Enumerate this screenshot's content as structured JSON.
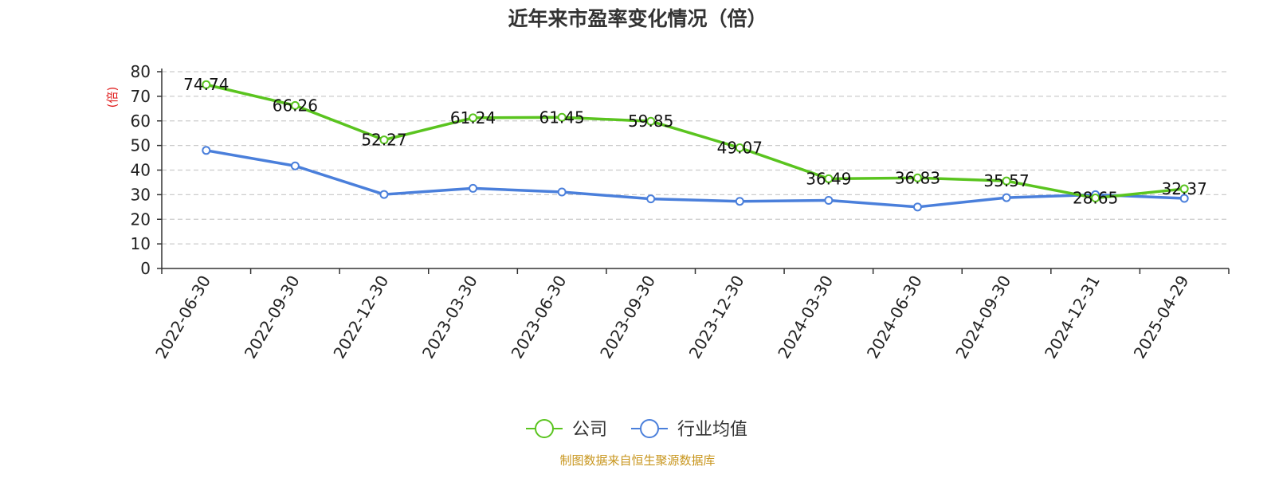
{
  "chart_data": {
    "type": "line",
    "title": "近年来市盈率变化情况（倍）",
    "ylabel": "(倍)",
    "ylim": [
      0,
      80
    ],
    "yticks": [
      0,
      10,
      20,
      30,
      40,
      50,
      60,
      70,
      80
    ],
    "grid": "horizontal-dashed",
    "legend_position": "bottom-center",
    "categories": [
      "2022-06-30",
      "2022-09-30",
      "2022-12-30",
      "2023-03-30",
      "2023-06-30",
      "2023-09-30",
      "2023-12-30",
      "2024-03-30",
      "2024-06-30",
      "2024-09-30",
      "2024-12-31",
      "2025-04-29"
    ],
    "series": [
      {
        "name": "公司",
        "color": "#5ac41f",
        "values": [
          74.74,
          66.26,
          52.27,
          61.24,
          61.45,
          59.85,
          49.07,
          36.49,
          36.83,
          35.57,
          28.65,
          32.37
        ],
        "labels": [
          "74.74",
          "66.26",
          "52.27",
          "61.24",
          "61.45",
          "59.85",
          "49.07",
          "36.49",
          "36.83",
          "35.57",
          "28.65",
          "32.37"
        ]
      },
      {
        "name": "行业均值",
        "color": "#4a7fdb",
        "values": [
          48.0,
          41.7,
          30.1,
          32.6,
          31.1,
          28.3,
          27.3,
          27.7,
          25.0,
          28.8,
          30.0,
          28.5
        ]
      }
    ]
  },
  "footer": {
    "source": "制图数据来自恒生聚源数据库"
  },
  "colors": {
    "axis": "#333333",
    "grid": "#cccccc",
    "unit_label": "#e02020",
    "source": "#c8961e"
  }
}
